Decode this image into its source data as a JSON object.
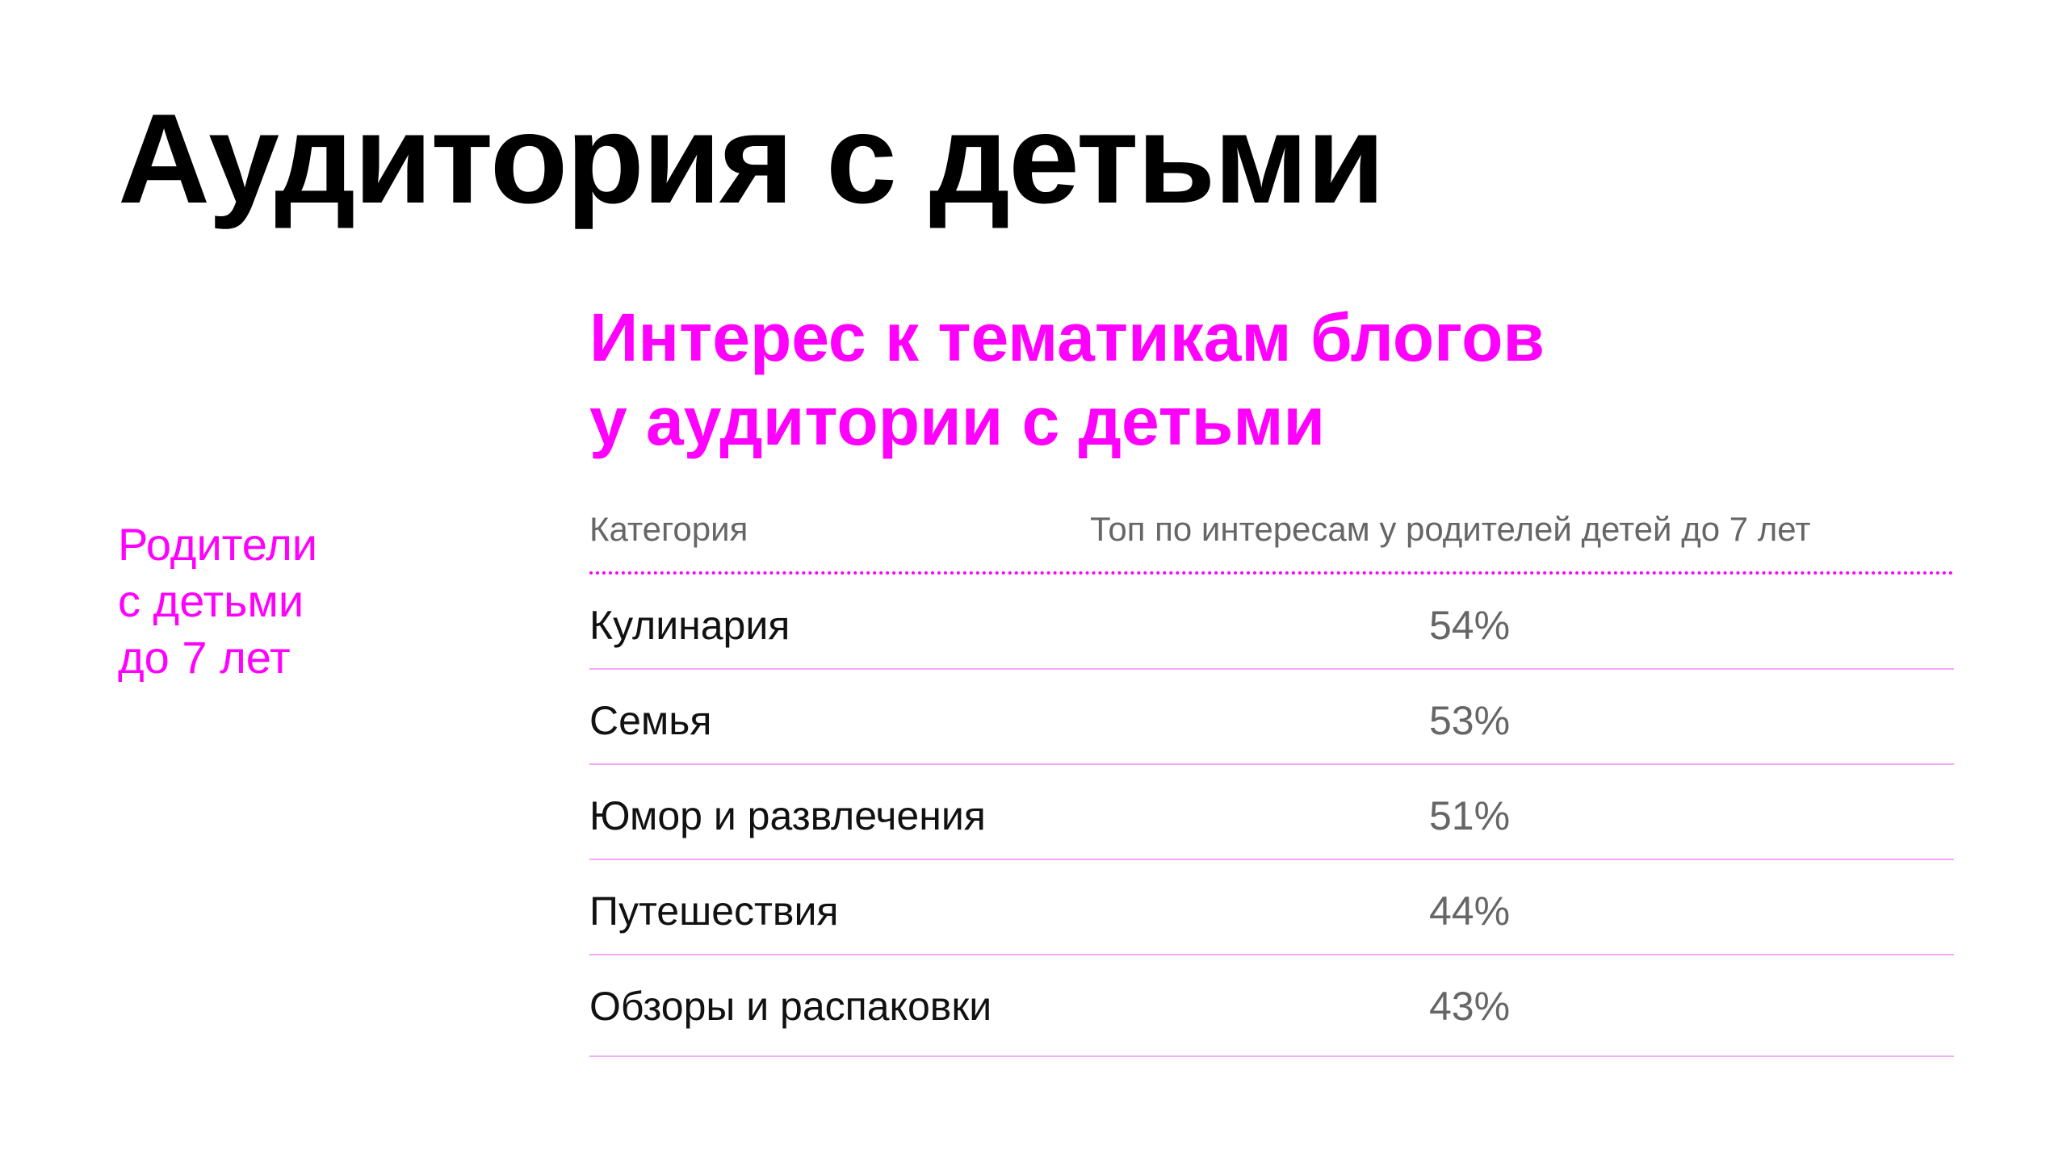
{
  "title": "Аудитория с детьми",
  "side_label": {
    "line1": "Родители",
    "line2": "с детьми",
    "line3": "до 7 лет"
  },
  "subtitle": {
    "line1": "Интерес к тематикам блогов",
    "line2": "у аудитории с детьми"
  },
  "table": {
    "headers": {
      "category": "Категория",
      "top": "Топ по интересам у родителей детей до 7 лет"
    },
    "rows": [
      {
        "category": "Кулинария",
        "value": "54%"
      },
      {
        "category": "Семья",
        "value": "53%"
      },
      {
        "category": "Юмор и развлечения",
        "value": "51%"
      },
      {
        "category": "Путешествия",
        "value": "44%"
      },
      {
        "category": "Обзоры и распаковки",
        "value": "43%"
      }
    ]
  },
  "colors": {
    "accent": "#ff00ff",
    "muted_text": "#666666",
    "row_divider": "#f3a8f3"
  }
}
